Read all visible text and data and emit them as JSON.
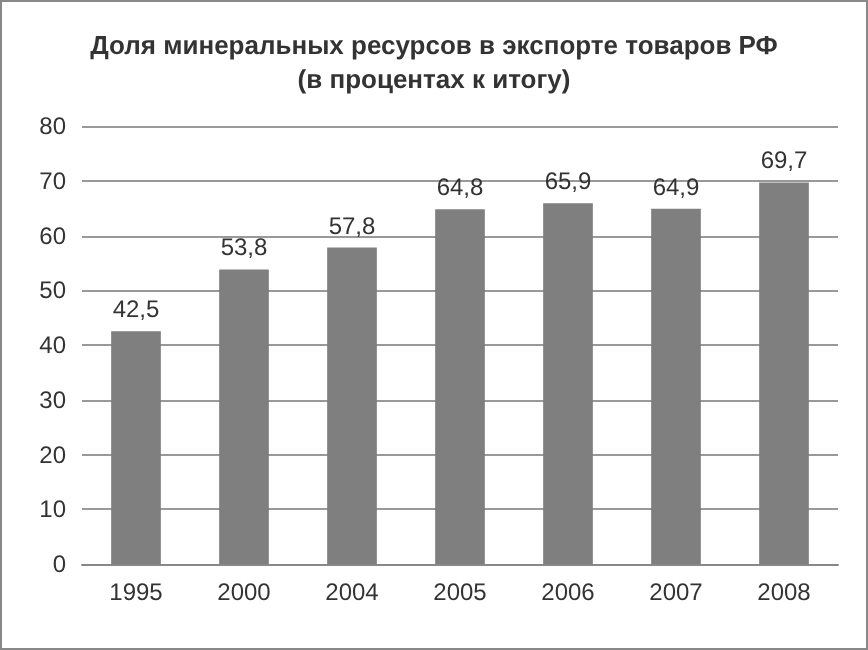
{
  "chart_data": {
    "type": "bar",
    "title": "Доля минеральных ресурсов в экспорте товаров РФ",
    "subtitle": "(в процентах к итогу)",
    "categories": [
      "1995",
      "2000",
      "2004",
      "2005",
      "2006",
      "2007",
      "2008"
    ],
    "values": [
      42.5,
      53.8,
      57.8,
      64.8,
      65.9,
      64.9,
      69.7
    ],
    "value_labels": [
      "42,5",
      "53,8",
      "57,8",
      "64,8",
      "65,9",
      "64,9",
      "69,7"
    ],
    "color": "#7f7f7f",
    "ylim": [
      0,
      80
    ],
    "yticks": [
      0,
      10,
      20,
      30,
      40,
      50,
      60,
      70,
      80
    ],
    "grid": "y"
  }
}
